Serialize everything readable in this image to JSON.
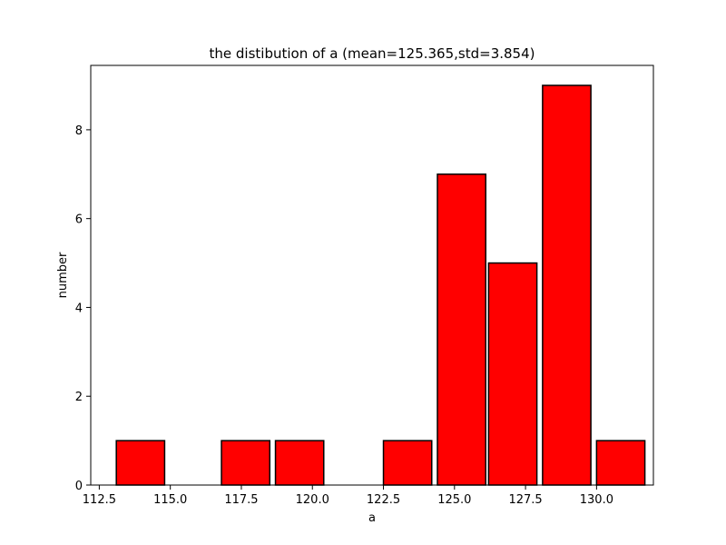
{
  "chart_data": {
    "type": "bar",
    "title": "the distibution of a (mean=125.365,std=3.854)",
    "xlabel": "a",
    "ylabel": "number",
    "xlim": [
      112.2,
      132.0
    ],
    "ylim": [
      0,
      9.45
    ],
    "xticks": [
      "112.5",
      "115.0",
      "117.5",
      "120.0",
      "122.5",
      "125.0",
      "127.5",
      "130.0"
    ],
    "yticks": [
      "0",
      "2",
      "4",
      "6",
      "8"
    ],
    "grid": false,
    "bar_color": "#ff0000",
    "edge_color": "#000000",
    "bins": [
      {
        "x0": 113.1,
        "x1": 114.8,
        "value": 1
      },
      {
        "x0": 115.0,
        "x1": 116.7,
        "value": 0
      },
      {
        "x0": 116.8,
        "x1": 118.5,
        "value": 1
      },
      {
        "x0": 118.7,
        "x1": 120.4,
        "value": 1
      },
      {
        "x0": 120.6,
        "x1": 122.3,
        "value": 0
      },
      {
        "x0": 122.5,
        "x1": 124.2,
        "value": 1
      },
      {
        "x0": 124.4,
        "x1": 126.1,
        "value": 7
      },
      {
        "x0": 126.2,
        "x1": 127.9,
        "value": 5
      },
      {
        "x0": 128.1,
        "x1": 129.8,
        "value": 9
      },
      {
        "x0": 130.0,
        "x1": 131.7,
        "value": 1
      }
    ]
  }
}
